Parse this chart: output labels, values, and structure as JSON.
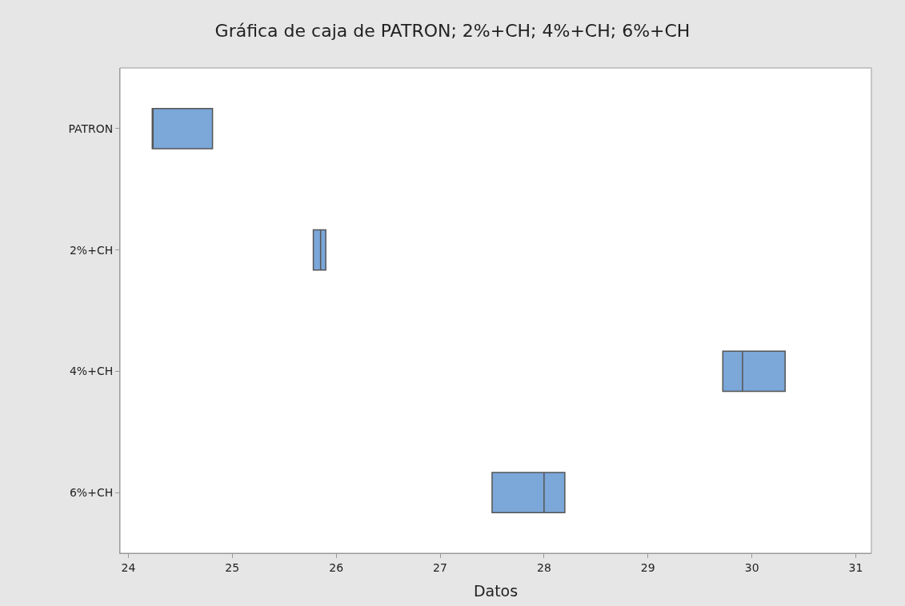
{
  "chart_data": {
    "type": "box",
    "title": "Gráfica de caja de PATRON; 2%+CH; 4%+CH; 6%+CH",
    "xlabel": "Datos",
    "orientation": "horizontal",
    "categories": [
      "PATRON",
      "2%+CH",
      "4%+CH",
      "6%+CH"
    ],
    "color": "#7ba7d9",
    "boxes": [
      {
        "low": 24.23,
        "q1": 24.23,
        "median": 24.23,
        "q3": 24.81,
        "high": 24.81
      },
      {
        "low": 25.78,
        "q1": 25.78,
        "median": 25.85,
        "q3": 25.9,
        "high": 25.9
      },
      {
        "low": 29.72,
        "q1": 29.72,
        "median": 29.91,
        "q3": 30.32,
        "high": 30.32
      },
      {
        "low": 27.5,
        "q1": 27.5,
        "median": 28.0,
        "q3": 28.2,
        "high": 28.2
      }
    ],
    "xlim": [
      23.92,
      31.15
    ],
    "xticks": [
      24,
      25,
      26,
      27,
      28,
      29,
      30,
      31
    ]
  }
}
